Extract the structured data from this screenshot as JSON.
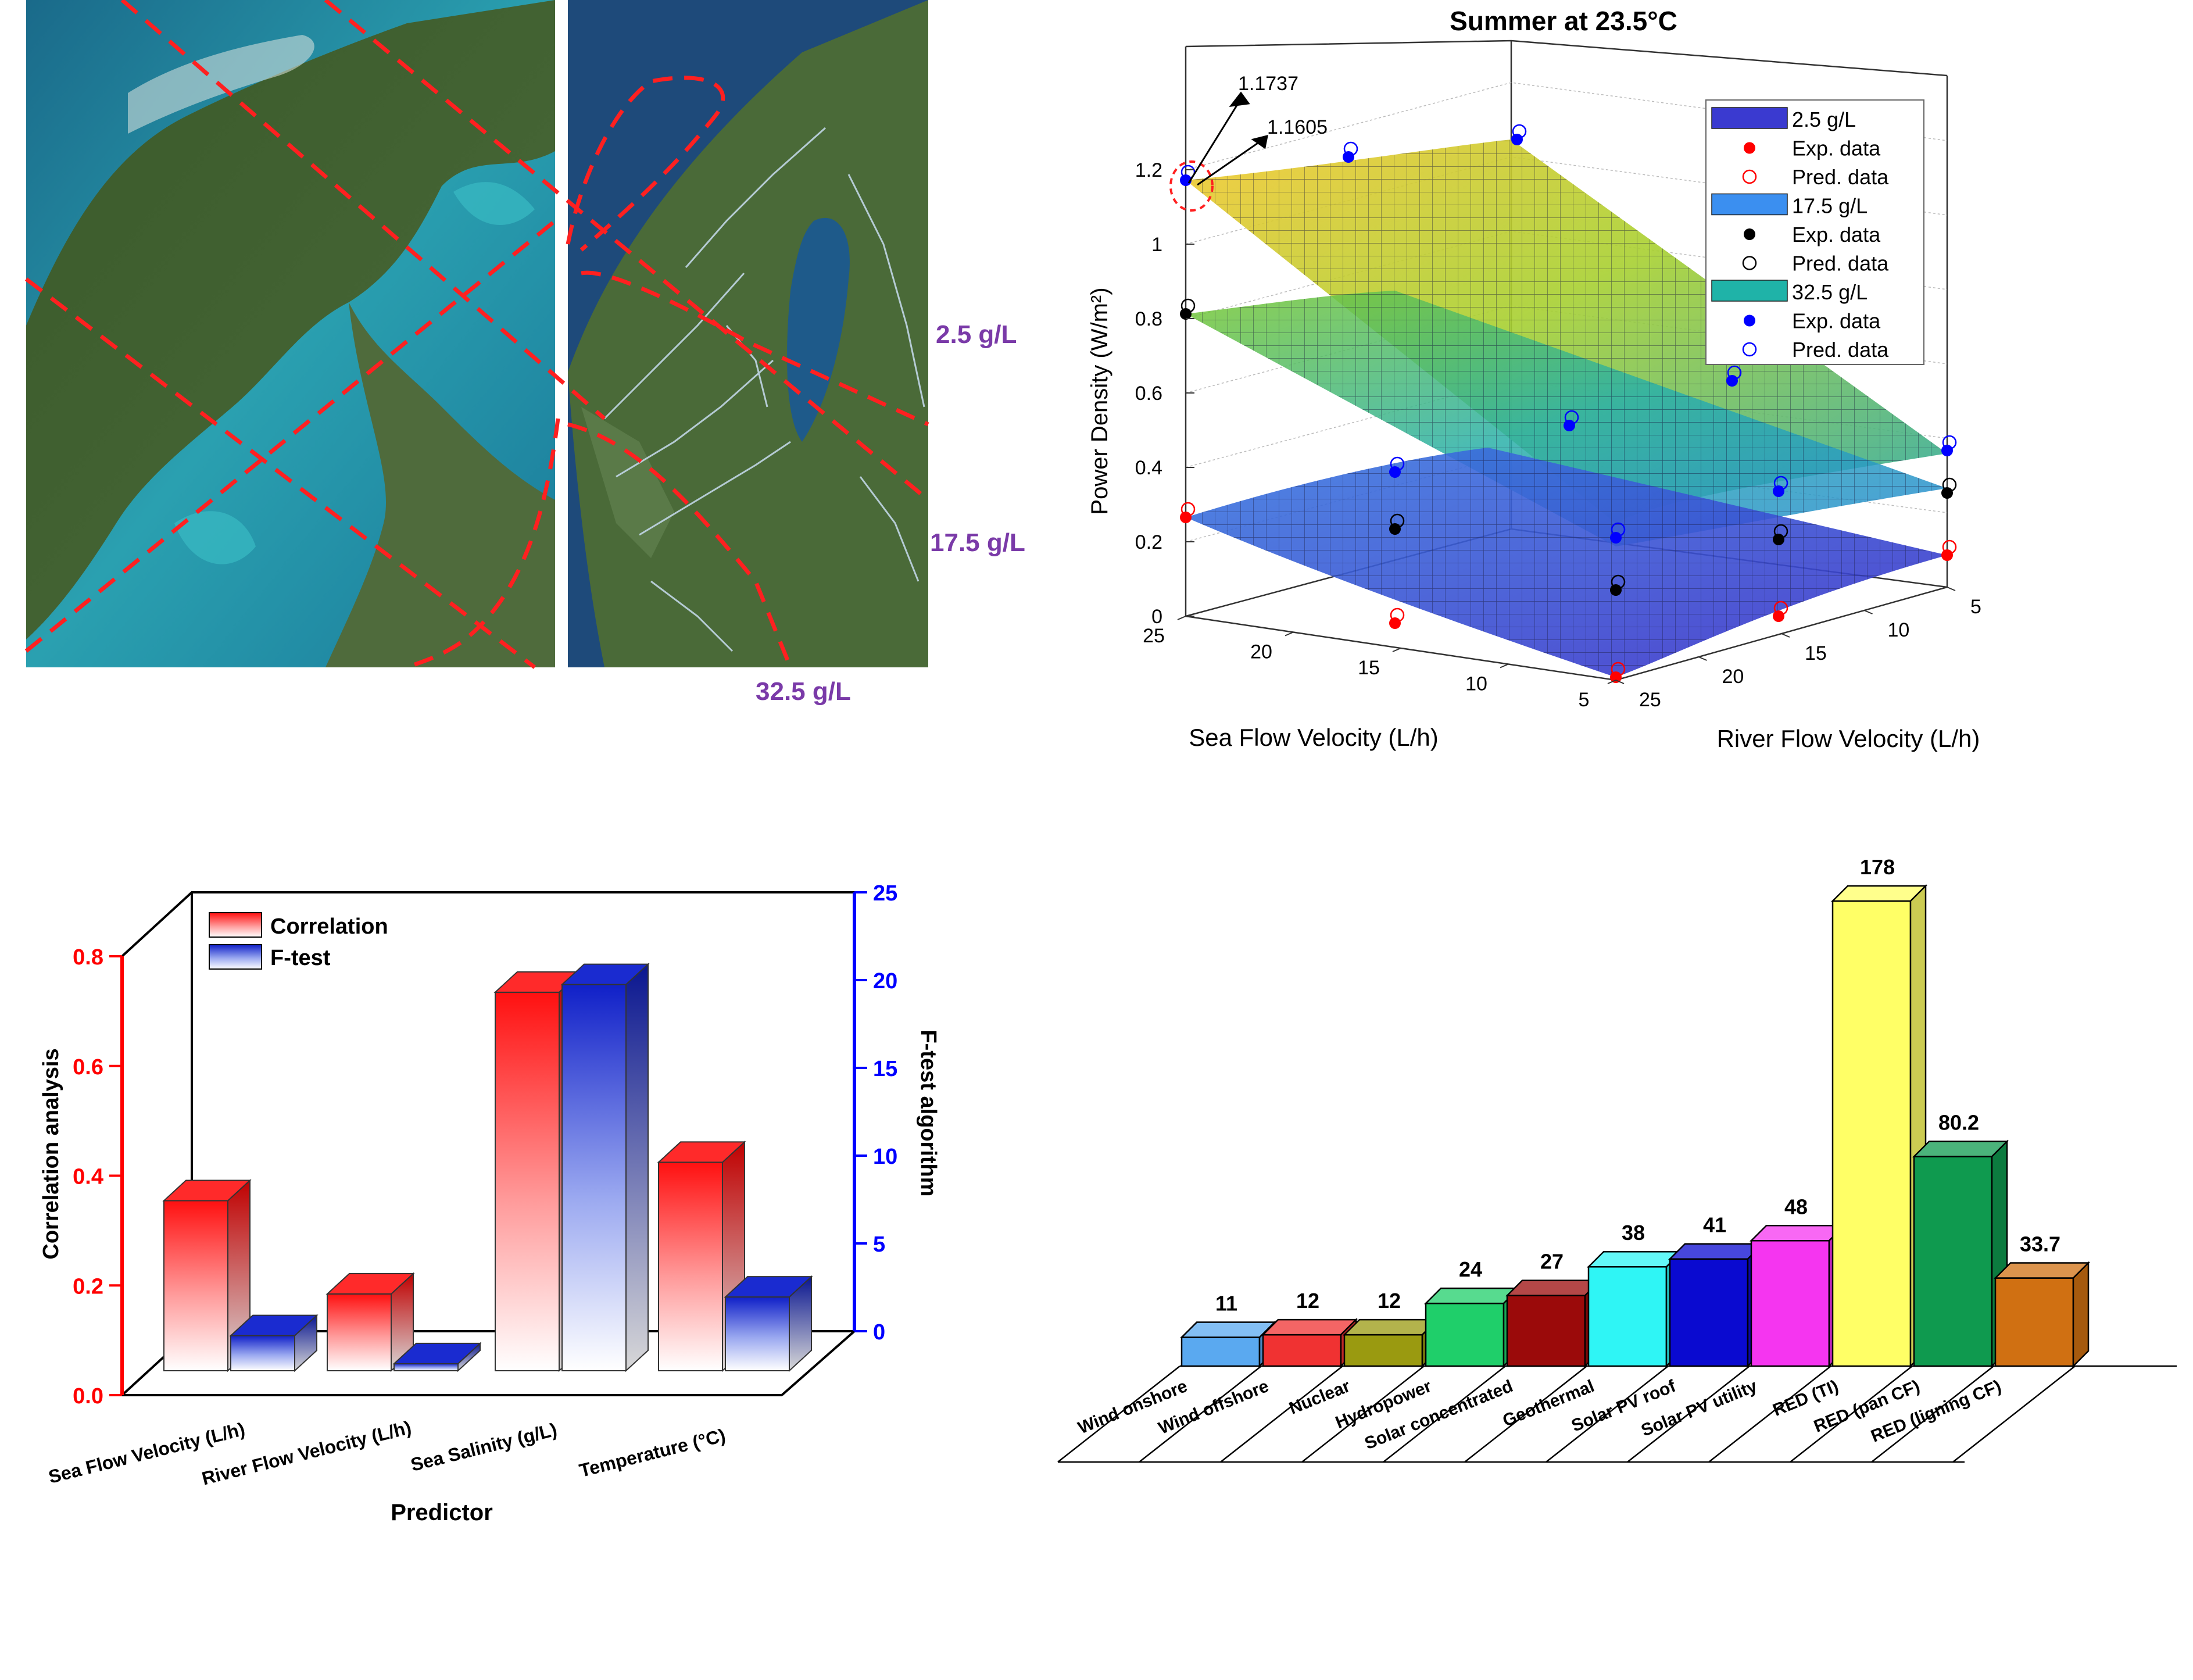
{
  "map_panel": {
    "salinity_labels": [
      "2.5 g/L",
      "17.5 g/L",
      "32.5 g/L"
    ]
  },
  "chart_data": [
    {
      "type": "surface3d",
      "title": "Summer at 23.5°C",
      "xlabel": "Sea Flow Velocity (L/h)",
      "ylabel": "River Flow Velocity (L/h)",
      "zlabel": "Power Density (W/m²)",
      "x_ticks": [
        "25",
        "20",
        "15",
        "10",
        "5"
      ],
      "y_ticks": [
        "5",
        "10",
        "15",
        "20",
        "25"
      ],
      "z_ticks": [
        "0",
        "0.2",
        "0.4",
        "0.6",
        "0.8",
        "1",
        "1.2"
      ],
      "zlim": [
        0,
        1.2
      ],
      "annotations": [
        "1.1737",
        "1.1605"
      ],
      "legend_position": "top-right",
      "legend": [
        {
          "label": "2.5 g/L",
          "marker": "patch",
          "color": "#3a3ad0"
        },
        {
          "label": "Exp. data",
          "marker": "dot",
          "color": "#ff0000"
        },
        {
          "label": "Pred. data",
          "marker": "circle",
          "color": "#ff0000"
        },
        {
          "label": "17.5 g/L",
          "marker": "patch",
          "color": "#3b8ff0"
        },
        {
          "label": "Exp. data",
          "marker": "dot",
          "color": "#000000"
        },
        {
          "label": "Pred. data",
          "marker": "circle",
          "color": "#000000"
        },
        {
          "label": "32.5 g/L",
          "marker": "patch",
          "color": "#1fb3a8"
        },
        {
          "label": "Exp. data",
          "marker": "dot",
          "color": "#0000ff"
        },
        {
          "label": "Pred. data",
          "marker": "circle",
          "color": "#0000ff"
        }
      ],
      "series": [
        {
          "name": "2.5 g/L",
          "corner_values": {
            "sea25_river5": 0.26,
            "sea5_river25": 0.0,
            "sea5_river5": 0.16
          }
        },
        {
          "name": "17.5 g/L",
          "corner_values": {
            "sea25_river5": 0.8,
            "sea5_river25": 0.2,
            "sea5_river5": 0.33
          }
        },
        {
          "name": "32.5 g/L",
          "corner_values": {
            "sea25_river5": 1.16,
            "sea5_river25": 0.62,
            "sea5_river5": 0.44
          }
        }
      ]
    },
    {
      "type": "bar",
      "xlabel": "Predictor",
      "ylabel": "Correlation analysis",
      "y2label": "F-test algorithm",
      "categories": [
        "Sea Flow Velocity (L/h)",
        "River Flow Velocity (L/h)",
        "Sea Salinity (g/L)",
        "Temperature (°C)"
      ],
      "y_ticks": [
        "0.0",
        "0.2",
        "0.4",
        "0.6",
        "0.8"
      ],
      "y2_ticks": [
        "0",
        "5",
        "10",
        "15",
        "20",
        "25"
      ],
      "ylim": [
        0,
        0.8
      ],
      "y2lim": [
        0,
        25
      ],
      "legend_position": "top-left",
      "series": [
        {
          "name": "Correlation",
          "axis": "left",
          "values": [
            0.31,
            0.14,
            0.69,
            0.38
          ],
          "color": "#ff1a1a"
        },
        {
          "name": "F-test",
          "axis": "right",
          "values": [
            2.0,
            0.4,
            22.0,
            4.2
          ],
          "color": "#1a2bd0"
        }
      ]
    },
    {
      "type": "bar",
      "categories": [
        "Wind onshore",
        "Wind offshore",
        "Nuclear",
        "Hydropower",
        "Solar concentrated",
        "Geothermal",
        "Solar PV roof",
        "Solar PV utility",
        "RED (TI)",
        "RED (pan CF)",
        "RED (ligning CF)"
      ],
      "values": [
        11,
        12,
        12,
        24,
        27,
        38,
        41,
        48,
        178,
        80.2,
        33.7
      ],
      "data_labels": [
        "11",
        "12",
        "12",
        "24",
        "27",
        "38",
        "41",
        "48",
        "178",
        "80.2",
        "33.7"
      ],
      "colors": [
        "#5aa9f0",
        "#f03232",
        "#9a9a10",
        "#1fcf6a",
        "#9b0a0a",
        "#2ff5f5",
        "#0a0ad0",
        "#f535f0",
        "#ffff66",
        "#0f9a4f",
        "#d07012"
      ]
    }
  ]
}
